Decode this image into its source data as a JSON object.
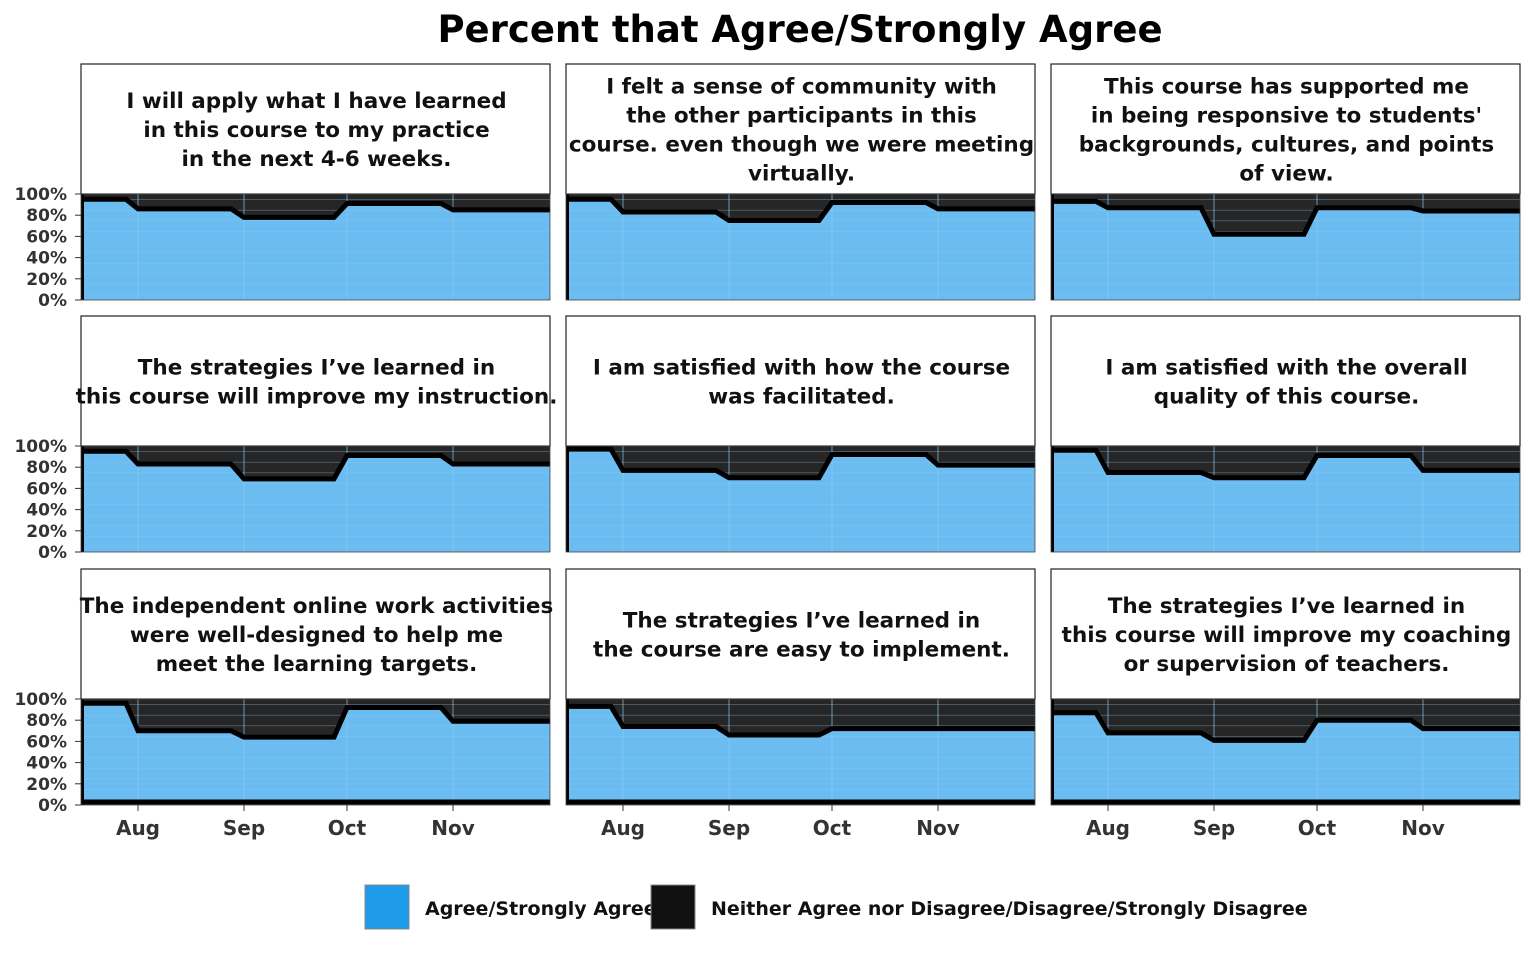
{
  "chart_data": {
    "type": "area",
    "title": "Percent that Agree/Strongly Agree",
    "x_ticks": [
      "Aug",
      "Sep",
      "Oct",
      "Nov"
    ],
    "x_dates": [
      "Jul 15",
      "Jul 31",
      "Aug 1",
      "Aug 31",
      "Sep 1",
      "Sep 30",
      "Oct 1",
      "Oct 31",
      "Nov 1",
      "Nov 30"
    ],
    "y_ticks": [
      "100%",
      "80%",
      "60%",
      "40%",
      "20%",
      "0%"
    ],
    "ylim": [
      0,
      100
    ],
    "series_names": [
      "Agree/Strongly Agree",
      "Neither Agree nor Disagree/Disagree/Strongly Disagree"
    ],
    "colors": {
      "agree": "#6bbcf0",
      "disagree": "#262626",
      "line": "#000000",
      "grid": "#8fcaf5",
      "legend_agree": "#1e9be9",
      "legend_disagree": "#111111"
    },
    "panels": [
      {
        "title_lines": [
          "I will apply what I have learned",
          "in this course to my practice",
          "in the next 4-6 weeks."
        ],
        "values": [
          95,
          95,
          86,
          86,
          78,
          78,
          91,
          91,
          85,
          85
        ]
      },
      {
        "title_lines": [
          "I felt a sense of community with",
          "the other participants in this",
          "course. even though we were meeting",
          "virtually."
        ],
        "values": [
          95,
          95,
          83,
          83,
          75,
          75,
          92,
          92,
          86,
          86
        ]
      },
      {
        "title_lines": [
          "This course has supported me",
          "in being responsive to students'",
          "backgrounds, cultures, and points",
          "of view."
        ],
        "values": [
          93,
          93,
          87,
          87,
          62,
          62,
          87,
          87,
          84,
          84
        ]
      },
      {
        "title_lines": [
          "The strategies I’ve learned in",
          "this course will improve my instruction."
        ],
        "values": [
          95,
          95,
          83,
          83,
          69,
          69,
          91,
          91,
          83,
          83
        ]
      },
      {
        "title_lines": [
          "I am satisfied with how the course",
          "was facilitated."
        ],
        "values": [
          97,
          97,
          77,
          77,
          70,
          70,
          92,
          92,
          82,
          82
        ]
      },
      {
        "title_lines": [
          "I am satisfied with the overall",
          "quality of this course."
        ],
        "values": [
          96,
          96,
          75,
          75,
          70,
          70,
          91,
          91,
          77,
          77
        ]
      },
      {
        "title_lines": [
          "The independent online work activities",
          "were well-designed to help me",
          "meet the learning targets."
        ],
        "values": [
          96,
          96,
          70,
          70,
          64,
          64,
          92,
          92,
          79,
          79
        ]
      },
      {
        "title_lines": [
          "The strategies I’ve learned in",
          "the course are easy to implement."
        ],
        "values": [
          93,
          93,
          74,
          74,
          66,
          66,
          72,
          72,
          72,
          72
        ]
      },
      {
        "title_lines": [
          "The strategies I’ve learned in",
          "this course will improve my coaching",
          "or supervision of teachers."
        ],
        "values": [
          87,
          87,
          68,
          68,
          61,
          61,
          80,
          80,
          72,
          72
        ]
      }
    ],
    "legend": [
      {
        "label": "Agree/Strongly Agree",
        "color_key": "legend_agree"
      },
      {
        "label": "Neither Agree nor Disagree/Disagree/Strongly Disagree",
        "color_key": "legend_disagree"
      }
    ]
  }
}
